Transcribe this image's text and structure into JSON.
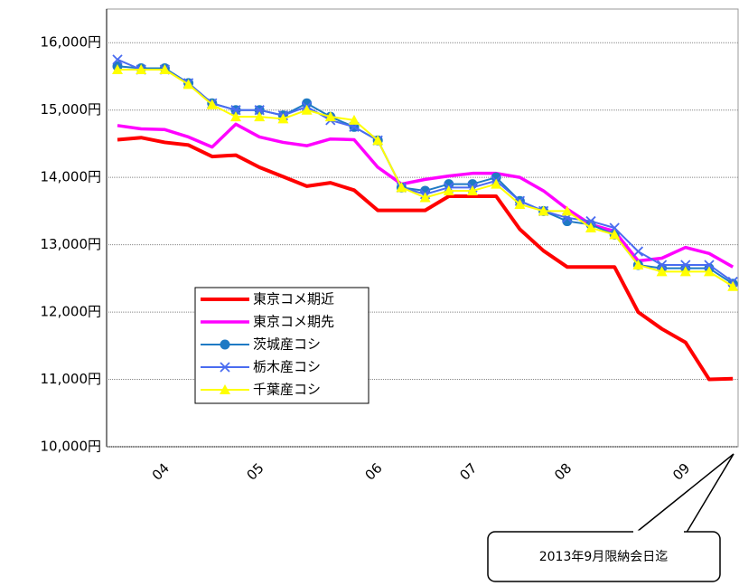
{
  "chart_data": {
    "type": "line",
    "categories": [
      null,
      "04",
      null,
      null,
      null,
      "05",
      null,
      null,
      null,
      null,
      "06",
      null,
      null,
      null,
      "07",
      null,
      null,
      null,
      "08",
      null,
      null,
      null,
      null,
      "09",
      null,
      null,
      null
    ],
    "series": [
      {
        "name": "東京コメ期近",
        "color": "#ff0000",
        "marker": null,
        "width": 4,
        "values": [
          14560,
          14590,
          14520,
          14480,
          14310,
          14330,
          14150,
          14010,
          13870,
          13920,
          13810,
          13510,
          13510,
          13510,
          13720,
          13720,
          13720,
          13230,
          12910,
          12670,
          12670,
          12670,
          12000,
          11750,
          11550,
          11000,
          11010
        ]
      },
      {
        "name": "東京コメ期先",
        "color": "#ff00ff",
        "marker": null,
        "width": 3.5,
        "values": [
          14770,
          14720,
          14710,
          14600,
          14450,
          14790,
          14600,
          14520,
          14470,
          14570,
          14560,
          14150,
          13900,
          13970,
          14020,
          14060,
          14060,
          14000,
          13800,
          13530,
          13300,
          13200,
          12760,
          12800,
          12960,
          12870,
          12670
        ]
      },
      {
        "name": "茨城産コシ",
        "color": "#1f7ac4",
        "marker": "circle",
        "width": 2,
        "values": [
          15650,
          15620,
          15620,
          15400,
          15100,
          15000,
          15000,
          14920,
          15100,
          14900,
          14750,
          14550,
          13850,
          13800,
          13900,
          13900,
          14000,
          13650,
          13500,
          13350,
          13300,
          13150,
          12700,
          12650,
          12650,
          12650,
          12420
        ]
      },
      {
        "name": "栃木産コシ",
        "color": "#4a6cf0",
        "marker": "x",
        "width": 2,
        "values": [
          15750,
          15600,
          15600,
          15400,
          15100,
          15000,
          15000,
          14920,
          15050,
          14850,
          14750,
          14550,
          13850,
          13750,
          13850,
          13850,
          13950,
          13650,
          13500,
          13400,
          13350,
          13250,
          12900,
          12700,
          12700,
          12700,
          12450
        ]
      },
      {
        "name": "千葉産コシ",
        "color": "#ffff00",
        "marker": "triangle",
        "width": 2,
        "values": [
          15600,
          15600,
          15600,
          15380,
          15080,
          14900,
          14900,
          14870,
          15000,
          14900,
          14850,
          14550,
          13850,
          13700,
          13800,
          13800,
          13900,
          13600,
          13500,
          13500,
          13250,
          13150,
          12700,
          12600,
          12600,
          12600,
          12380
        ]
      }
    ],
    "ylim": [
      10000,
      16500
    ],
    "yticks": [
      {
        "value": 10000,
        "label": "10,000円"
      },
      {
        "value": 11000,
        "label": "11,000円"
      },
      {
        "value": 12000,
        "label": "12,000円"
      },
      {
        "value": 13000,
        "label": "13,000円"
      },
      {
        "value": 14000,
        "label": "14,000円"
      },
      {
        "value": 15000,
        "label": "15,000円"
      },
      {
        "value": 16000,
        "label": "16,000円"
      }
    ],
    "grid": true,
    "annotation": "2013年9月限納会日迄"
  }
}
